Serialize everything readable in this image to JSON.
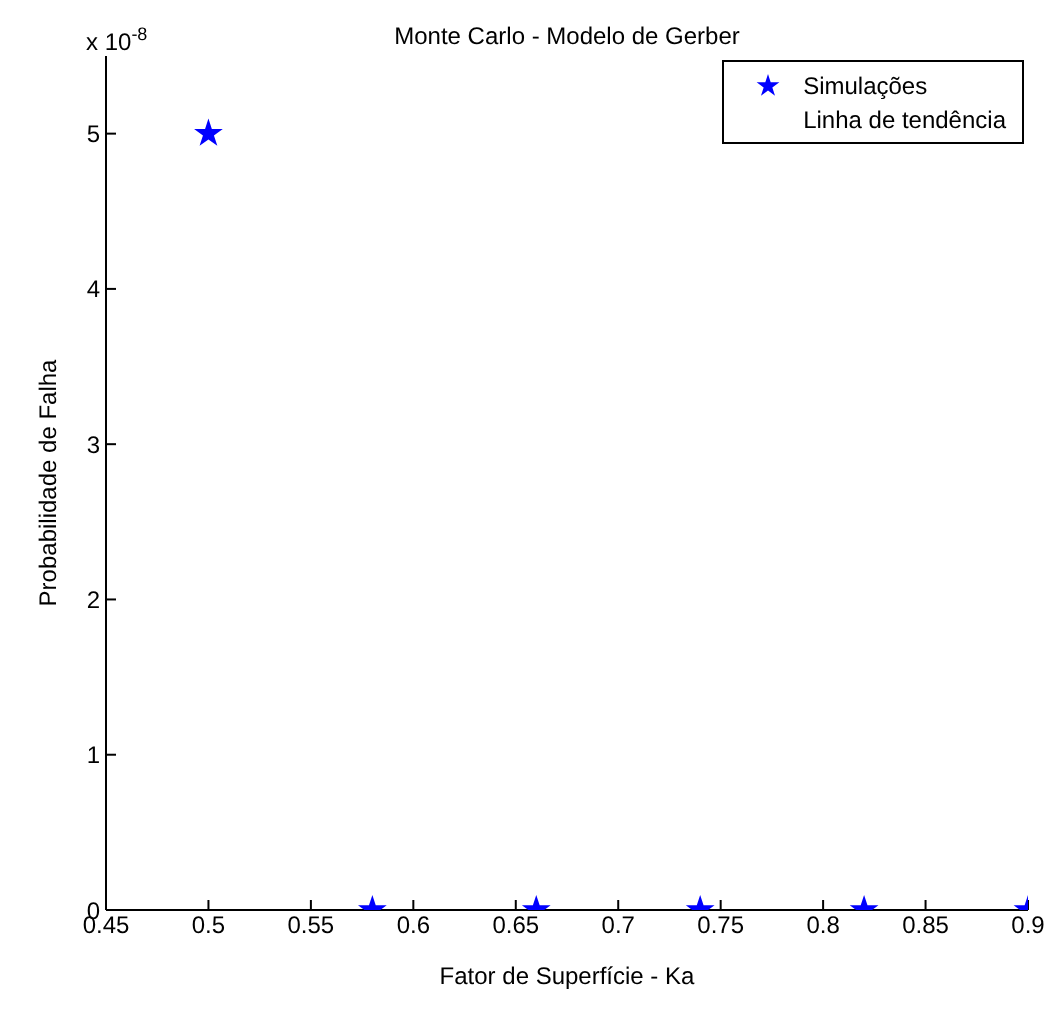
{
  "chart_data": {
    "type": "scatter",
    "title": "Monte Carlo - Modelo de Gerber",
    "xlabel": "Fator de Superfície - Ka",
    "ylabel": "Probabilidade de Falha",
    "annotations": [
      "x 10$^{-8}$"
    ],
    "x": [
      0.5,
      0.58,
      0.66,
      0.74,
      0.82,
      0.9
    ],
    "series": [
      {
        "name": "Simulações",
        "color": "#0000ff",
        "marker": "star",
        "values": [
          5,
          0,
          0,
          0,
          0,
          0
        ]
      },
      {
        "name": "Linha de tendência",
        "marker": "none",
        "values": [
          null,
          null,
          null,
          null,
          null,
          null
        ]
      }
    ],
    "xlim": [
      0.45,
      0.9
    ],
    "xticks": [
      0.45,
      0.5,
      0.55,
      0.6,
      0.65,
      0.7,
      0.75,
      0.8,
      0.85,
      0.9
    ],
    "ylim": [
      0,
      5.5
    ],
    "yticks": [
      0,
      1,
      2,
      3,
      4,
      5
    ],
    "grid": false,
    "legend": "top right"
  }
}
